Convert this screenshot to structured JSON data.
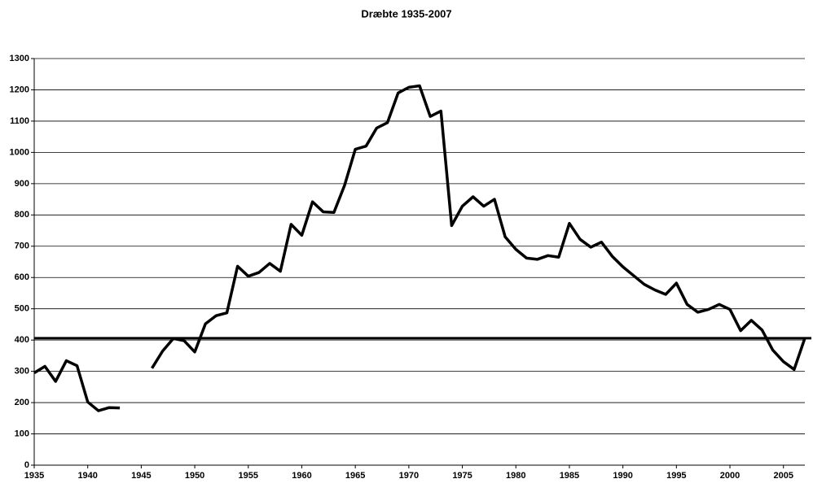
{
  "chart_data": {
    "type": "line",
    "title": "Dræbte 1935-2007",
    "x": [
      1935,
      1936,
      1937,
      1938,
      1939,
      1940,
      1941,
      1942,
      1943,
      1944,
      1945,
      1946,
      1947,
      1948,
      1949,
      1950,
      1951,
      1952,
      1953,
      1954,
      1955,
      1956,
      1957,
      1958,
      1959,
      1960,
      1961,
      1962,
      1963,
      1964,
      1965,
      1966,
      1967,
      1968,
      1969,
      1970,
      1971,
      1972,
      1973,
      1974,
      1975,
      1976,
      1977,
      1978,
      1979,
      1980,
      1981,
      1982,
      1983,
      1984,
      1985,
      1986,
      1987,
      1988,
      1989,
      1990,
      1991,
      1992,
      1993,
      1994,
      1995,
      1996,
      1997,
      1998,
      1999,
      2000,
      2001,
      2002,
      2003,
      2004,
      2005,
      2006,
      2007
    ],
    "series": [
      {
        "name": "Dræbte",
        "color": "#000000",
        "values": [
          295,
          316,
          268,
          334,
          318,
          202,
          174,
          184,
          183,
          null,
          null,
          310,
          365,
          405,
          398,
          362,
          452,
          478,
          487,
          636,
          604,
          616,
          645,
          620,
          770,
          735,
          842,
          810,
          808,
          895,
          1010,
          1020,
          1078,
          1095,
          1190,
          1208,
          1213,
          1115,
          1132,
          766,
          828,
          858,
          828,
          850,
          730,
          690,
          662,
          658,
          670,
          665,
          773,
          722,
          697,
          713,
          668,
          634,
          606,
          578,
          560,
          546,
          582,
          514,
          489,
          498,
          514,
          498,
          430,
          463,
          432,
          368,
          331,
          306,
          406
        ]
      }
    ],
    "reference_line": 406,
    "xlim": [
      1935,
      2007
    ],
    "xticks": [
      1935,
      1940,
      1945,
      1950,
      1955,
      1960,
      1965,
      1970,
      1975,
      1980,
      1985,
      1990,
      1995,
      2000,
      2005
    ],
    "ylim": [
      0,
      1300
    ],
    "yticks": [
      0,
      100,
      200,
      300,
      400,
      500,
      600,
      700,
      800,
      900,
      1000,
      1100,
      1200,
      1300
    ],
    "grid": true
  }
}
